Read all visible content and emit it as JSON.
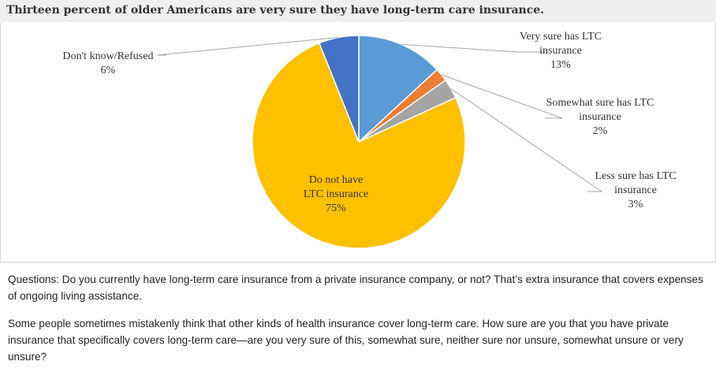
{
  "title": "Thirteen percent of older Americans are very sure they have long-term care insurance.",
  "chart_data": {
    "type": "pie",
    "slices": [
      {
        "label_lines": [
          "Very sure has LTC",
          "insurance"
        ],
        "value": 13,
        "value_label": "13%",
        "color": "#5b9bd5"
      },
      {
        "label_lines": [
          "Somewhat sure has LTC",
          "insurance"
        ],
        "value": 2,
        "value_label": "2%",
        "color": "#ed7d31"
      },
      {
        "label_lines": [
          "Less sure has LTC",
          "insurance"
        ],
        "value": 3,
        "value_label": "3%",
        "color": "#a5a5a5"
      },
      {
        "label_lines": [
          "Do not have",
          "LTC insurance"
        ],
        "value": 75,
        "value_label": "75%",
        "color": "#ffc000"
      },
      {
        "label_lines": [
          "Don't know/Refused"
        ],
        "value": 6,
        "value_label": "6%",
        "color": "#4472c4"
      }
    ]
  },
  "notes": {
    "question_1": "Questions: Do you currently have long-term care insurance from a private insurance company, or not? That’s extra insurance that covers expenses of ongoing living assistance.",
    "question_2": "Some people sometimes mistakenly think that other kinds of health insurance cover long-term care. How sure are you that you have private insurance that specifically covers long-term care—are you very sure of this, somewhat sure, neither sure nor unsure, somewhat unsure or very unsure?"
  }
}
